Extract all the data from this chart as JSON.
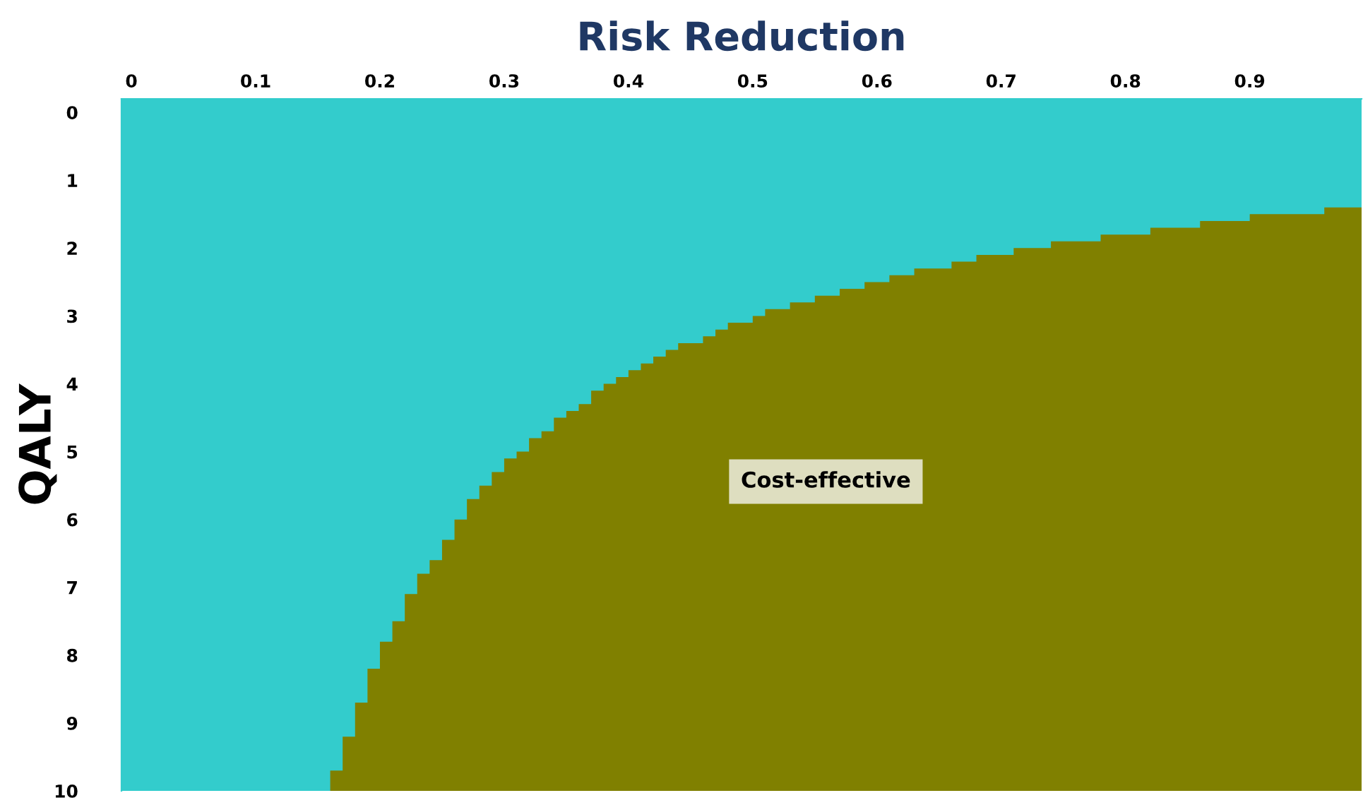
{
  "chart_data": {
    "type": "area",
    "xlabel": "Risk Reduction",
    "ylabel": "QALY",
    "annotations": [
      "Cost-effective"
    ],
    "x": [
      0.16,
      0.16,
      0.17,
      0.17,
      0.18,
      0.18,
      0.19,
      0.19,
      0.2,
      0.2,
      0.21,
      0.21,
      0.22,
      0.22,
      0.23,
      0.23,
      0.24,
      0.24,
      0.25,
      0.25,
      0.26,
      0.26,
      0.27,
      0.27,
      0.28,
      0.28,
      0.29,
      0.29,
      0.3,
      0.3,
      0.31,
      0.31,
      0.32,
      0.32,
      0.33,
      0.33,
      0.34,
      0.34,
      0.35,
      0.35,
      0.36,
      0.36,
      0.37,
      0.37,
      0.38,
      0.38,
      0.39,
      0.39,
      0.4,
      0.4,
      0.41,
      0.41,
      0.42,
      0.42,
      0.43,
      0.43,
      0.44,
      0.44,
      0.46,
      0.46,
      0.47,
      0.47,
      0.48,
      0.48,
      0.5,
      0.5,
      0.51,
      0.51,
      0.53,
      0.53,
      0.55,
      0.55,
      0.57,
      0.57,
      0.59,
      0.59,
      0.61,
      0.61,
      0.63,
      0.63,
      0.66,
      0.66,
      0.68,
      0.68,
      0.71,
      0.71,
      0.74,
      0.74,
      0.78,
      0.78,
      0.82,
      0.82,
      0.86,
      0.86,
      0.9,
      0.9,
      0.96,
      0.96,
      0.99,
      0.99
    ],
    "series": [
      {
        "color": "#808000",
        "values": [
          10,
          9.7,
          9.7,
          9.2,
          9.2,
          8.7,
          8.7,
          8.2,
          8.2,
          7.8,
          7.8,
          7.5,
          7.5,
          7.1,
          7.1,
          6.8,
          6.8,
          6.6,
          6.6,
          6.3,
          6.3,
          6.0,
          6.0,
          5.7,
          5.7,
          5.5,
          5.5,
          5.3,
          5.3,
          5.1,
          5.1,
          5.0,
          5.0,
          4.8,
          4.8,
          4.7,
          4.7,
          4.5,
          4.5,
          4.4,
          4.4,
          4.3,
          4.3,
          4.1,
          4.1,
          4.0,
          4.0,
          3.9,
          3.9,
          3.8,
          3.8,
          3.7,
          3.7,
          3.6,
          3.6,
          3.5,
          3.5,
          3.4,
          3.4,
          3.3,
          3.3,
          3.2,
          3.2,
          3.1,
          3.1,
          3.0,
          3.0,
          2.9,
          2.9,
          2.8,
          2.8,
          2.7,
          2.7,
          2.6,
          2.6,
          2.5,
          2.5,
          2.4,
          2.4,
          2.3,
          2.3,
          2.2,
          2.2,
          2.1,
          2.1,
          2.0,
          2.0,
          1.9,
          1.9,
          1.8,
          1.8,
          1.7,
          1.7,
          1.6,
          1.6,
          1.5,
          1.5,
          1.4,
          1.4,
          10
        ]
      }
    ],
    "bands": [
      {
        "axis": "x",
        "from": -0.008,
        "to": 0.99,
        "color": "#33cccc"
      }
    ],
    "xlim": [
      -0.008,
      0.99
    ],
    "ylim": [
      10,
      -0.2
    ],
    "xticks": [
      0,
      0.1,
      0.2,
      0.3,
      0.4,
      0.5,
      0.6,
      0.7,
      0.8,
      0.9
    ],
    "yticks": [
      0,
      1,
      2,
      3,
      4,
      5,
      6,
      7,
      8,
      9,
      10
    ],
    "grid": false,
    "legend": false
  }
}
